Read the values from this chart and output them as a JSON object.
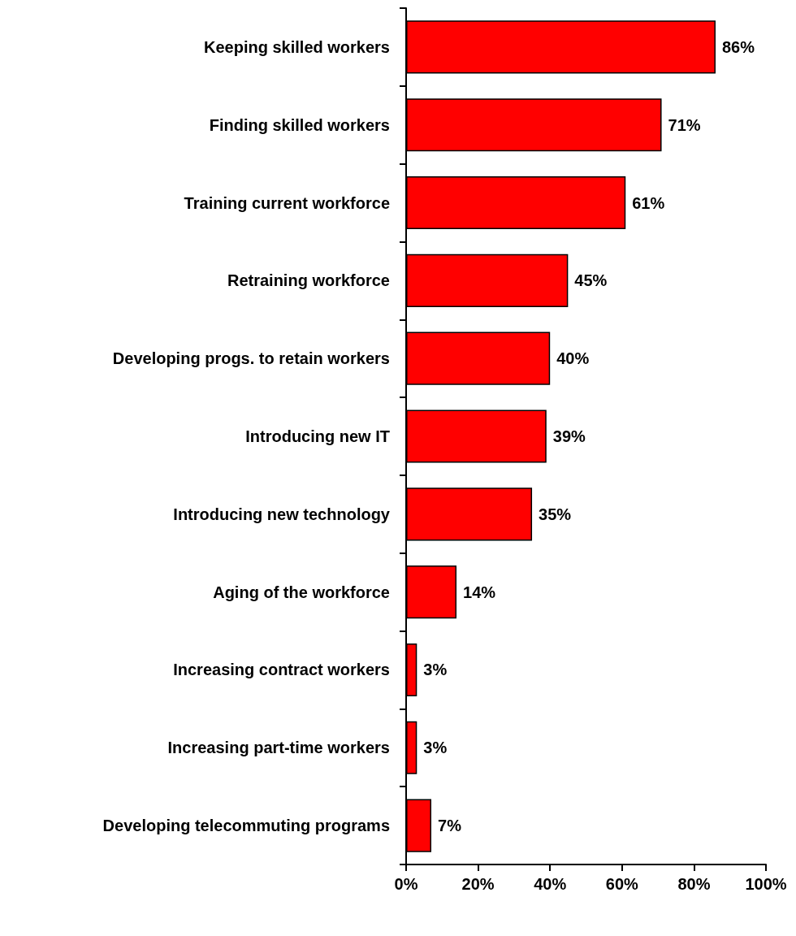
{
  "chart_data": {
    "type": "bar",
    "orientation": "horizontal",
    "categories": [
      "Keeping skilled workers",
      "Finding skilled workers",
      "Training current workforce",
      "Retraining workforce",
      "Developing progs. to retain workers",
      "Introducing new IT",
      "Introducing new technology",
      "Aging of the workforce",
      "Increasing contract workers",
      "Increasing part-time workers",
      "Developing telecommuting programs"
    ],
    "values": [
      86,
      71,
      61,
      45,
      40,
      39,
      35,
      14,
      3,
      3,
      7
    ],
    "value_labels": [
      "86%",
      "71%",
      "61%",
      "45%",
      "40%",
      "39%",
      "35%",
      "14%",
      "3%",
      "3%",
      "7%"
    ],
    "color": "#ff0000",
    "xlim": [
      0,
      100
    ],
    "xticks": [
      {
        "value": 0,
        "label": "0%"
      },
      {
        "value": 20,
        "label": "20%"
      },
      {
        "value": 40,
        "label": "40%"
      },
      {
        "value": 60,
        "label": "60%"
      },
      {
        "value": 80,
        "label": "80%"
      },
      {
        "value": 100,
        "label": "100%"
      }
    ],
    "grid": false
  }
}
